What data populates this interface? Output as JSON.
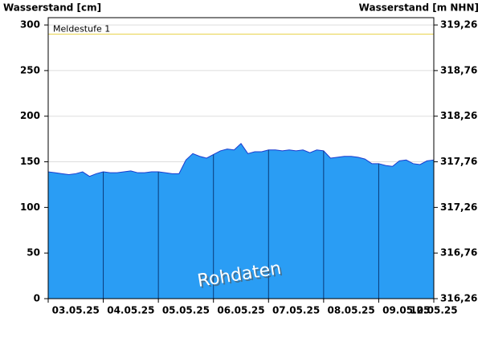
{
  "chart_data": {
    "type": "area",
    "y_label": "Wasserstand [cm]",
    "y2_label": "Wasserstand [m NHN]",
    "xticks": [
      "03.05.25",
      "04.05.25",
      "05.05.25",
      "06.05.25",
      "07.05.25",
      "08.05.25",
      "09.05.25",
      "10.05.25"
    ],
    "series": [
      {
        "color": "#2a9df4",
        "values": [
          139,
          138,
          137,
          136,
          137,
          139,
          134,
          137,
          139,
          138,
          138,
          139,
          140,
          138,
          138,
          139,
          139,
          138,
          137,
          137,
          152,
          159,
          156,
          154,
          158,
          162,
          164,
          163,
          170,
          159,
          161,
          161,
          163,
          163,
          162,
          163,
          162,
          163,
          160,
          163,
          162,
          154,
          155,
          156,
          156,
          155,
          153,
          148,
          148,
          146,
          145,
          151,
          152,
          148,
          147,
          151,
          152
        ]
      }
    ],
    "ylim": [
      0,
      308
    ],
    "yticks": [
      0,
      50,
      100,
      150,
      200,
      250,
      300
    ],
    "y2lim": [
      316.26,
      319.34
    ],
    "y2ticks": [
      {
        "value": 316.26,
        "label": "316,26"
      },
      {
        "value": 316.76,
        "label": "316,76"
      },
      {
        "value": 317.26,
        "label": "317,26"
      },
      {
        "value": 317.76,
        "label": "317,76"
      },
      {
        "value": 318.26,
        "label": "318,26"
      },
      {
        "value": 318.76,
        "label": "318,76"
      },
      {
        "value": 319.26,
        "label": "319,26"
      }
    ],
    "grid": true,
    "thresholds": [
      {
        "label": "Meldestufe 1",
        "value": 290,
        "color": "#e8d44d"
      }
    ],
    "watermark": "Rohdaten"
  }
}
